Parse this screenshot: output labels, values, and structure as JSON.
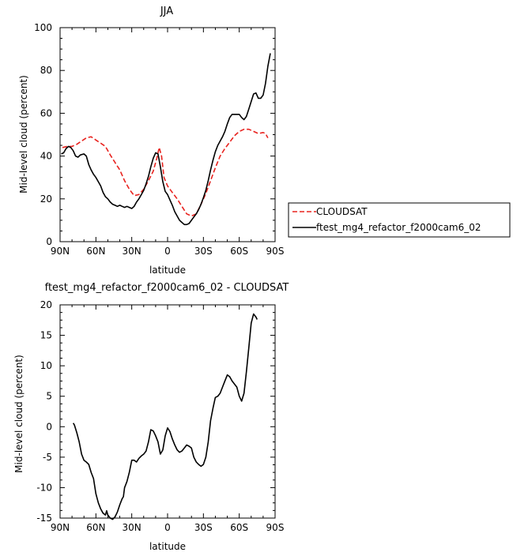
{
  "chart_data": [
    {
      "type": "line",
      "title": "JJA",
      "xlabel": "latitude",
      "ylabel": "Mid-level cloud (percent)",
      "x_tick_labels": [
        "90N",
        "60N",
        "30N",
        "0",
        "30S",
        "60S",
        "90S"
      ],
      "x_tick_values": [
        90,
        60,
        30,
        0,
        -30,
        -60,
        -90
      ],
      "xlim": [
        90,
        -90
      ],
      "ylim": [
        0,
        100
      ],
      "y_ticks": [
        0,
        20,
        40,
        60,
        80,
        100
      ],
      "legend_position": "right",
      "series": [
        {
          "name": "CLOUDSAT",
          "color": "#e8231f",
          "dash": "dashed",
          "points": [
            [
              88,
              44
            ],
            [
              84,
              44.5
            ],
            [
              80,
              44.5
            ],
            [
              76,
              45.5
            ],
            [
              72,
              47
            ],
            [
              68,
              48.5
            ],
            [
              64,
              49
            ],
            [
              60,
              47.5
            ],
            [
              56,
              46
            ],
            [
              52,
              44.5
            ],
            [
              48,
              40.5
            ],
            [
              44,
              37
            ],
            [
              40,
              33.5
            ],
            [
              36,
              28.5
            ],
            [
              32,
              24.5
            ],
            [
              28,
              21.5
            ],
            [
              24,
              22
            ],
            [
              20,
              24.5
            ],
            [
              16,
              28.5
            ],
            [
              12,
              33
            ],
            [
              9,
              39
            ],
            [
              7,
              44
            ],
            [
              5,
              40
            ],
            [
              3,
              30
            ],
            [
              0,
              26
            ],
            [
              -4,
              23
            ],
            [
              -8,
              20
            ],
            [
              -12,
              16.5
            ],
            [
              -16,
              13
            ],
            [
              -20,
              12
            ],
            [
              -24,
              13
            ],
            [
              -28,
              17.5
            ],
            [
              -32,
              22.5
            ],
            [
              -36,
              28.5
            ],
            [
              -40,
              34.5
            ],
            [
              -44,
              40
            ],
            [
              -48,
              43.5
            ],
            [
              -52,
              46.5
            ],
            [
              -56,
              49.5
            ],
            [
              -60,
              51.5
            ],
            [
              -64,
              52.5
            ],
            [
              -68,
              52.5
            ],
            [
              -72,
              51.5
            ],
            [
              -76,
              50.5
            ],
            [
              -80,
              51
            ],
            [
              -82,
              50.5
            ],
            [
              -84,
              48.5
            ]
          ]
        },
        {
          "name": "ftest_mg4_refactor_f2000cam6_02",
          "color": "#000000",
          "dash": "solid",
          "points": [
            [
              89,
              41
            ],
            [
              87,
              41.5
            ],
            [
              85,
              43.5
            ],
            [
              83,
              44.5
            ],
            [
              81,
              44
            ],
            [
              79,
              42.5
            ],
            [
              77,
              40
            ],
            [
              75,
              39.5
            ],
            [
              73,
              40.5
            ],
            [
              70,
              41
            ],
            [
              68,
              40
            ],
            [
              66,
              36
            ],
            [
              64,
              33.5
            ],
            [
              62,
              31.5
            ],
            [
              60,
              30
            ],
            [
              58,
              28
            ],
            [
              56,
              26
            ],
            [
              54,
              23
            ],
            [
              52,
              21
            ],
            [
              50,
              20
            ],
            [
              48,
              18.5
            ],
            [
              46,
              17.5
            ],
            [
              44,
              17
            ],
            [
              42,
              16.5
            ],
            [
              40,
              17
            ],
            [
              38,
              16.5
            ],
            [
              36,
              16
            ],
            [
              34,
              16.5
            ],
            [
              32,
              16
            ],
            [
              30,
              15.5
            ],
            [
              28,
              16.5
            ],
            [
              26,
              18.5
            ],
            [
              24,
              20
            ],
            [
              22,
              22
            ],
            [
              20,
              24
            ],
            [
              18,
              27
            ],
            [
              16,
              30.5
            ],
            [
              14,
              35
            ],
            [
              12,
              39
            ],
            [
              10,
              41.5
            ],
            [
              8,
              41
            ],
            [
              6,
              35
            ],
            [
              4,
              28
            ],
            [
              2,
              23.5
            ],
            [
              0,
              22
            ],
            [
              -2,
              19.5
            ],
            [
              -4,
              17
            ],
            [
              -6,
              14
            ],
            [
              -8,
              12
            ],
            [
              -10,
              10
            ],
            [
              -12,
              9
            ],
            [
              -14,
              8
            ],
            [
              -16,
              8
            ],
            [
              -18,
              8.5
            ],
            [
              -20,
              10
            ],
            [
              -22,
              11.5
            ],
            [
              -24,
              13
            ],
            [
              -26,
              15
            ],
            [
              -28,
              17.5
            ],
            [
              -30,
              20.5
            ],
            [
              -32,
              24
            ],
            [
              -34,
              28.5
            ],
            [
              -36,
              33.5
            ],
            [
              -38,
              38
            ],
            [
              -40,
              42
            ],
            [
              -42,
              45
            ],
            [
              -44,
              47
            ],
            [
              -46,
              49
            ],
            [
              -48,
              51.5
            ],
            [
              -50,
              55
            ],
            [
              -52,
              58
            ],
            [
              -54,
              59.5
            ],
            [
              -56,
              59.5
            ],
            [
              -58,
              59.5
            ],
            [
              -60,
              59.5
            ],
            [
              -62,
              58
            ],
            [
              -64,
              57
            ],
            [
              -66,
              58.5
            ],
            [
              -68,
              62
            ],
            [
              -70,
              65.5
            ],
            [
              -72,
              69
            ],
            [
              -74,
              69.5
            ],
            [
              -76,
              67
            ],
            [
              -78,
              67
            ],
            [
              -80,
              68.5
            ],
            [
              -82,
              74
            ],
            [
              -84,
              82
            ],
            [
              -86,
              88
            ]
          ]
        }
      ]
    },
    {
      "type": "line",
      "title": "ftest_mg4_refactor_f2000cam6_02 - CLOUDSAT",
      "xlabel": "latitude",
      "ylabel": "Mid-level cloud (percent)",
      "x_tick_labels": [
        "90N",
        "60N",
        "30N",
        "0",
        "30S",
        "60S",
        "90S"
      ],
      "x_tick_values": [
        90,
        60,
        30,
        0,
        -30,
        -60,
        -90
      ],
      "xlim": [
        90,
        -90
      ],
      "ylim": [
        -15,
        20
      ],
      "y_ticks": [
        -15,
        -10,
        -5,
        0,
        5,
        10,
        15,
        20
      ],
      "series": [
        {
          "color": "#000000",
          "dash": "solid",
          "points": [
            [
              79,
              0.6
            ],
            [
              78,
              0.3
            ],
            [
              76,
              -1
            ],
            [
              74,
              -2.5
            ],
            [
              72,
              -4.5
            ],
            [
              70,
              -5.5
            ],
            [
              68,
              -5.8
            ],
            [
              66,
              -6.2
            ],
            [
              64,
              -7.5
            ],
            [
              62,
              -8.5
            ],
            [
              60,
              -11
            ],
            [
              58,
              -12.5
            ],
            [
              56,
              -13.5
            ],
            [
              54,
              -14.2
            ],
            [
              52,
              -14.5
            ],
            [
              51,
              -13.8
            ],
            [
              50,
              -14.5
            ],
            [
              48,
              -15
            ],
            [
              46,
              -15.2
            ],
            [
              44,
              -14.8
            ],
            [
              42,
              -14
            ],
            [
              40,
              -12.8
            ],
            [
              38,
              -11.8
            ],
            [
              37,
              -11.5
            ],
            [
              36,
              -10
            ],
            [
              34,
              -9
            ],
            [
              32,
              -7.5
            ],
            [
              30,
              -5.5
            ],
            [
              28,
              -5.5
            ],
            [
              26,
              -5.8
            ],
            [
              24,
              -5.2
            ],
            [
              22,
              -4.8
            ],
            [
              20,
              -4.5
            ],
            [
              18,
              -4
            ],
            [
              16,
              -2.5
            ],
            [
              14,
              -0.5
            ],
            [
              12,
              -0.7
            ],
            [
              10,
              -1.5
            ],
            [
              8,
              -2.5
            ],
            [
              6,
              -4.5
            ],
            [
              4,
              -3.8
            ],
            [
              2,
              -1.5
            ],
            [
              0,
              -0.2
            ],
            [
              -2,
              -0.8
            ],
            [
              -4,
              -2
            ],
            [
              -6,
              -3
            ],
            [
              -8,
              -3.8
            ],
            [
              -10,
              -4.2
            ],
            [
              -12,
              -4
            ],
            [
              -14,
              -3.5
            ],
            [
              -16,
              -3
            ],
            [
              -18,
              -3.2
            ],
            [
              -20,
              -3.5
            ],
            [
              -22,
              -5
            ],
            [
              -24,
              -5.8
            ],
            [
              -26,
              -6.2
            ],
            [
              -28,
              -6.5
            ],
            [
              -30,
              -6.2
            ],
            [
              -32,
              -5
            ],
            [
              -34,
              -2.5
            ],
            [
              -36,
              1
            ],
            [
              -38,
              3
            ],
            [
              -40,
              4.8
            ],
            [
              -42,
              5
            ],
            [
              -44,
              5.5
            ],
            [
              -46,
              6.5
            ],
            [
              -48,
              7.5
            ],
            [
              -50,
              8.5
            ],
            [
              -52,
              8.2
            ],
            [
              -54,
              7.5
            ],
            [
              -56,
              7
            ],
            [
              -58,
              6.5
            ],
            [
              -60,
              5
            ],
            [
              -62,
              4.2
            ],
            [
              -64,
              5.5
            ],
            [
              -66,
              9
            ],
            [
              -68,
              13
            ],
            [
              -70,
              17
            ],
            [
              -72,
              18.5
            ],
            [
              -74,
              18
            ],
            [
              -75,
              17.6
            ]
          ]
        }
      ]
    }
  ]
}
